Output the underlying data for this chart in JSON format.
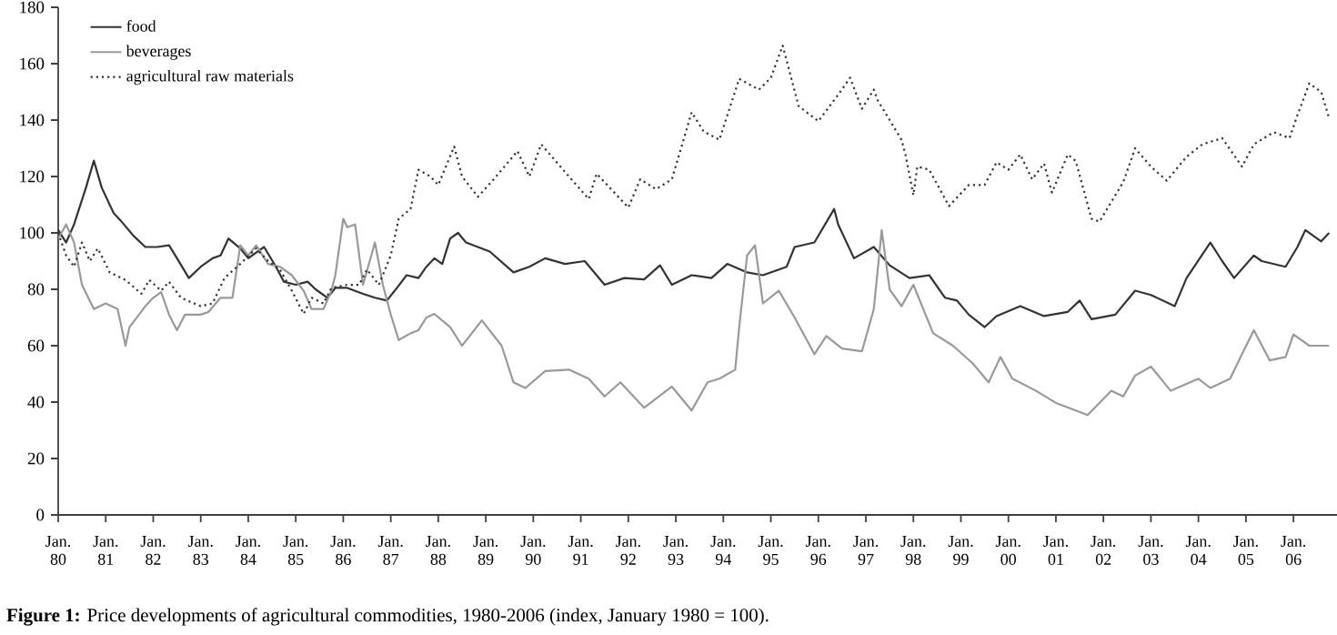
{
  "chart_data": {
    "type": "line",
    "xlim": [
      "1980-01",
      "2006-12"
    ],
    "ylim": [
      0,
      180
    ],
    "xticks": [
      {
        "value": "1980-01",
        "label": "Jan. 80"
      },
      {
        "value": "1981-01",
        "label": "Jan. 81"
      },
      {
        "value": "1982-01",
        "label": "Jan. 82"
      },
      {
        "value": "1983-01",
        "label": "Jan. 83"
      },
      {
        "value": "1984-01",
        "label": "Jan. 84"
      },
      {
        "value": "1985-01",
        "label": "Jan. 85"
      },
      {
        "value": "1986-01",
        "label": "Jan. 86"
      },
      {
        "value": "1987-01",
        "label": "Jan. 87"
      },
      {
        "value": "1988-01",
        "label": "Jan. 88"
      },
      {
        "value": "1989-01",
        "label": "Jan. 89"
      },
      {
        "value": "1990-01",
        "label": "Jan. 90"
      },
      {
        "value": "1991-01",
        "label": "Jan. 91"
      },
      {
        "value": "1992-01",
        "label": "Jan. 92"
      },
      {
        "value": "1993-01",
        "label": "Jan. 93"
      },
      {
        "value": "1994-01",
        "label": "Jan. 94"
      },
      {
        "value": "1995-01",
        "label": "Jan. 95"
      },
      {
        "value": "1996-01",
        "label": "Jan. 96"
      },
      {
        "value": "1997-01",
        "label": "Jan. 97"
      },
      {
        "value": "1998-01",
        "label": "Jan. 98"
      },
      {
        "value": "1999-01",
        "label": "Jan. 99"
      },
      {
        "value": "2000-01",
        "label": "Jan. 00"
      },
      {
        "value": "2001-01",
        "label": "Jan. 01"
      },
      {
        "value": "2002-01",
        "label": "Jan. 02"
      },
      {
        "value": "2003-01",
        "label": "Jan. 03"
      },
      {
        "value": "2004-01",
        "label": "Jan. 04"
      },
      {
        "value": "2005-01",
        "label": "Jan. 05"
      },
      {
        "value": "2006-01",
        "label": "Jan. 06"
      }
    ],
    "yticks": [
      0,
      20,
      40,
      60,
      80,
      100,
      120,
      140,
      160,
      180
    ],
    "legend": "top left",
    "marker": "none",
    "annotations": [
      "**Figure 1:** Price developments of agricultural commodities, 1980-2006 (index, January 1980 = 100)."
    ],
    "series": [
      {
        "name": "food",
        "color": "#333333",
        "line_style": "solid",
        "x": [
          "1980-01",
          "1980-03",
          "1980-05",
          "1980-08",
          "1980-10",
          "1980-12",
          "1981-03",
          "1981-05",
          "1981-08",
          "1981-11",
          "1982-02",
          "1982-05",
          "1982-07",
          "1982-10",
          "1983-01",
          "1983-04",
          "1983-06",
          "1983-08",
          "1983-11",
          "1984-01",
          "1984-05",
          "1984-08",
          "1984-10",
          "1985-01",
          "1985-04",
          "1985-06",
          "1985-09",
          "1985-11",
          "1986-02",
          "1986-06",
          "1986-09",
          "1986-12",
          "1987-02",
          "1987-05",
          "1987-08",
          "1987-10",
          "1987-12",
          "1988-02",
          "1988-04",
          "1988-06",
          "1988-08",
          "1989-02",
          "1989-08",
          "1989-12",
          "1990-04",
          "1990-09",
          "1991-02",
          "1991-07",
          "1991-12",
          "1992-05",
          "1992-09",
          "1992-12",
          "1993-05",
          "1993-10",
          "1994-02",
          "1994-07",
          "1994-11",
          "1995-05",
          "1995-07",
          "1995-12",
          "1996-05",
          "1996-06",
          "1996-10",
          "1997-03",
          "1997-07",
          "1997-12",
          "1998-05",
          "1998-09",
          "1998-12",
          "1999-03",
          "1999-07",
          "1999-10",
          "2000-04",
          "2000-10",
          "2001-04",
          "2001-07",
          "2001-10",
          "2002-04",
          "2002-09",
          "2003-01",
          "2003-07",
          "2003-10",
          "2004-04",
          "2004-07",
          "2004-10",
          "2005-03",
          "2005-05",
          "2005-11",
          "2006-02",
          "2006-04",
          "2006-08",
          "2006-10"
        ],
        "values": [
          101,
          96.6,
          103,
          116,
          125.6,
          116,
          107,
          104,
          99,
          95,
          95,
          95.6,
          91,
          84,
          88,
          91,
          92,
          98,
          94.5,
          91,
          95,
          88,
          82.7,
          81.6,
          82.7,
          80,
          77,
          80.5,
          80.5,
          78.4,
          77,
          76,
          79.5,
          85,
          84,
          88,
          91,
          89,
          98,
          100,
          96.6,
          93.4,
          86,
          88,
          91,
          89,
          90,
          81.6,
          84,
          83.5,
          88.5,
          81.6,
          85,
          84,
          89,
          86,
          85,
          88,
          95,
          96.6,
          108.5,
          103,
          91,
          95,
          88.5,
          84,
          85,
          77,
          76,
          71,
          66.6,
          70.5,
          74,
          70.5,
          72,
          76,
          69.4,
          71,
          79.5,
          78,
          74,
          84,
          96.6,
          90,
          84,
          92,
          90,
          88,
          95,
          101,
          97,
          100
        ]
      },
      {
        "name": "beverages",
        "color": "#999999",
        "line_style": "solid",
        "x": [
          "1980-01",
          "1980-03",
          "1980-05",
          "1980-07",
          "1980-10",
          "1981-01",
          "1981-04",
          "1981-06",
          "1981-07",
          "1981-11",
          "1982-01",
          "1982-03",
          "1982-05",
          "1982-07",
          "1982-09",
          "1983-01",
          "1983-03",
          "1983-06",
          "1983-09",
          "1983-11",
          "1984-01",
          "1984-03",
          "1984-06",
          "1984-09",
          "1984-12",
          "1985-03",
          "1985-05",
          "1985-08",
          "1985-10",
          "1985-11",
          "1986-01",
          "1986-02",
          "1986-04",
          "1986-06",
          "1986-09",
          "1986-11",
          "1987-01",
          "1987-03",
          "1987-06",
          "1987-08",
          "1987-10",
          "1987-12",
          "1988-04",
          "1988-07",
          "1988-12",
          "1989-05",
          "1989-08",
          "1989-11",
          "1990-04",
          "1990-10",
          "1991-03",
          "1991-07",
          "1991-11",
          "1992-05",
          "1992-12",
          "1993-05",
          "1993-09",
          "1993-12",
          "1994-04",
          "1994-05",
          "1994-07",
          "1994-09",
          "1994-11",
          "1995-03",
          "1995-07",
          "1995-12",
          "1996-03",
          "1996-07",
          "1996-12",
          "1997-03",
          "1997-05",
          "1997-07",
          "1997-10",
          "1998-01",
          "1998-06",
          "1998-11",
          "1999-04",
          "1999-08",
          "1999-11",
          "2000-02",
          "2000-08",
          "2001-01",
          "2001-05",
          "2001-09",
          "2002-03",
          "2002-06",
          "2002-09",
          "2003-01",
          "2003-06",
          "2004-01",
          "2004-04",
          "2004-09",
          "2004-12",
          "2005-03",
          "2005-07",
          "2005-11",
          "2006-01",
          "2006-05",
          "2006-10"
        ],
        "values": [
          98,
          103,
          96.6,
          81.6,
          73,
          75,
          73,
          60,
          66.6,
          74,
          77,
          79,
          71,
          65.5,
          71,
          71,
          72,
          77,
          77,
          95.6,
          92,
          95.6,
          89,
          88,
          85,
          79.5,
          73,
          73,
          79.5,
          85,
          105,
          102,
          103,
          81.6,
          96.6,
          81.6,
          71,
          62,
          64.4,
          65.5,
          70,
          71.3,
          66.6,
          60,
          69,
          60,
          47,
          45,
          51,
          51.5,
          48.3,
          42,
          47,
          38,
          45.5,
          37,
          47,
          48.3,
          51.5,
          66.6,
          92,
          95.6,
          75,
          79.5,
          70,
          57,
          63.4,
          59,
          58,
          73,
          101,
          80,
          74,
          81.6,
          64.4,
          60,
          53.7,
          47,
          56,
          48.3,
          44,
          39.7,
          37.6,
          35.4,
          44,
          42,
          49.4,
          52.6,
          44,
          48.3,
          45,
          48.3,
          57,
          65.5,
          54.8,
          56,
          64,
          60,
          60
        ]
      },
      {
        "name": "agricultural raw materials",
        "color": "#333333",
        "line_style": "dotted",
        "x": [
          "1980-01",
          "1980-03",
          "1980-05",
          "1980-07",
          "1980-09",
          "1980-11",
          "1981-02",
          "1981-06",
          "1981-10",
          "1981-12",
          "1982-03",
          "1982-05",
          "1982-08",
          "1983-01",
          "1983-04",
          "1983-07",
          "1983-11",
          "1984-03",
          "1984-06",
          "1984-09",
          "1984-12",
          "1985-03",
          "1985-05",
          "1985-08",
          "1985-10",
          "1986-02",
          "1986-05",
          "1986-07",
          "1986-10",
          "1987-01",
          "1987-03",
          "1987-06",
          "1987-08",
          "1987-11",
          "1988-01",
          "1988-05",
          "1988-07",
          "1988-11",
          "1989-03",
          "1989-09",
          "1989-12",
          "1990-03",
          "1990-10",
          "1991-03",
          "1991-05",
          "1992-01",
          "1992-04",
          "1992-08",
          "1992-12",
          "1993-05",
          "1993-08",
          "1993-12",
          "1994-05",
          "1994-10",
          "1995-01",
          "1995-04",
          "1995-08",
          "1995-10",
          "1996-01",
          "1996-06",
          "1996-09",
          "1996-12",
          "1997-03",
          "1997-04",
          "1997-10",
          "1997-11",
          "1998-01",
          "1998-02",
          "1998-05",
          "1998-10",
          "1999-03",
          "1999-07",
          "1999-10",
          "2000-01",
          "2000-04",
          "2000-07",
          "2000-10",
          "2000-12",
          "2001-04",
          "2001-06",
          "2001-10",
          "2001-12",
          "2002-06",
          "2002-09",
          "2003-01",
          "2003-05",
          "2003-10",
          "2004-02",
          "2004-07",
          "2004-12",
          "2005-03",
          "2005-08",
          "2005-12",
          "2006-02",
          "2006-05",
          "2006-08",
          "2006-10"
        ],
        "values": [
          100,
          92,
          88,
          96.6,
          90,
          94.5,
          86,
          83.3,
          78.4,
          83.3,
          79.5,
          82.7,
          77,
          74,
          75,
          84,
          89,
          94.5,
          90,
          87,
          79.5,
          71.3,
          77,
          75,
          80.5,
          81.6,
          81.6,
          87,
          81.6,
          92,
          105,
          108.5,
          122.4,
          120,
          117,
          130.6,
          120,
          112.8,
          119,
          129,
          120,
          131.4,
          120,
          112,
          121,
          109,
          119,
          115.5,
          119,
          142.8,
          136,
          133,
          154.6,
          150.8,
          155,
          166.4,
          145,
          142.8,
          139.6,
          149,
          155,
          144,
          150.8,
          147,
          133,
          127.8,
          113.4,
          123.5,
          122.4,
          109.5,
          117,
          117,
          125,
          122.4,
          127.8,
          119,
          124.6,
          114.3,
          127.8,
          125.5,
          105,
          104,
          118,
          130,
          123.5,
          118.5,
          127,
          131.4,
          133.6,
          123.5,
          131.4,
          135.7,
          133.6,
          141.7,
          153,
          150,
          140.7
        ]
      }
    ]
  }
}
